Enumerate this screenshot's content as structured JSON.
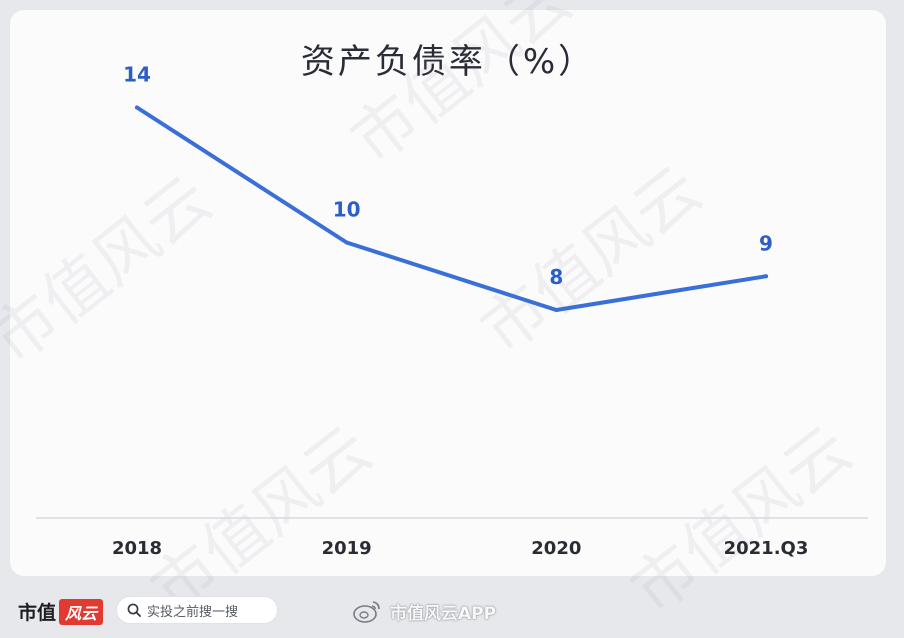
{
  "chart_data": {
    "type": "line",
    "title": "资产负债率（%）",
    "categories": [
      "2018",
      "2019",
      "2020",
      "2021.Q3"
    ],
    "series": [
      {
        "values": [
          14,
          10,
          8,
          9
        ]
      }
    ],
    "data_labels": [
      "14",
      "10",
      "8",
      "9"
    ],
    "ylim": [
      0,
      16
    ],
    "grid": false,
    "legend": "none",
    "line_color": "#3a6fd8",
    "label_color": "#2b5fc7"
  },
  "footer": {
    "brand_name": "市值",
    "brand_badge": "风云",
    "search_placeholder": "实投之前搜一搜",
    "weibo_handle": "市值风云APP"
  },
  "watermark": "市值风云",
  "colors": {
    "accent": "#3a6fd8",
    "brand_red": "#e23a31"
  }
}
